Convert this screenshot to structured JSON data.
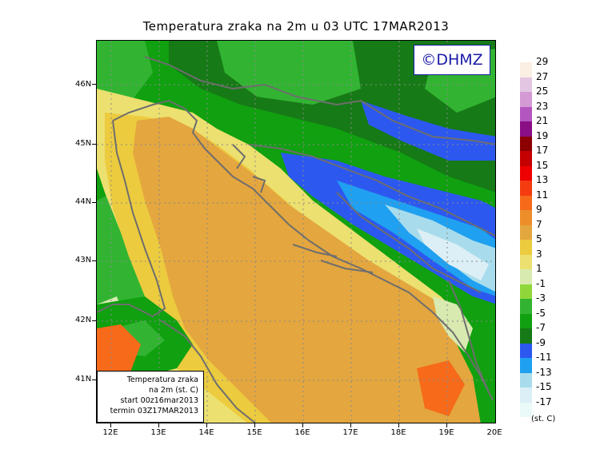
{
  "title": "Temperatura zraka na 2m u 03 UTC 17MAR2013",
  "copyright": "©DHMZ",
  "info_box": {
    "line1": "Temperatura zraka",
    "line2": "na 2m (st. C)",
    "line3": "start 00z16mar2013",
    "line4": "termin 03Z17MAR2013"
  },
  "axes": {
    "lat_labels": [
      "46N",
      "45N",
      "44N",
      "43N",
      "42N",
      "41N"
    ],
    "lon_labels": [
      "12E",
      "13E",
      "14E",
      "15E",
      "16E",
      "17E",
      "18E",
      "19E",
      "20E"
    ]
  },
  "legend": {
    "unit": "(st. C)",
    "labels": [
      "29",
      "27",
      "25",
      "23",
      "21",
      "19",
      "17",
      "15",
      "13",
      "11",
      "9",
      "7",
      "5",
      "3",
      "1",
      "-1",
      "-3",
      "-5",
      "-7",
      "-9",
      "-11",
      "-13",
      "-15",
      "-17"
    ],
    "colors": [
      "#fbeee2",
      "#e2c6e2",
      "#d49ad4",
      "#b456c0",
      "#8a0e86",
      "#8c0000",
      "#c40000",
      "#ee0000",
      "#f43c10",
      "#f66a1a",
      "#ee8e2a",
      "#e4a63e",
      "#eccb3e",
      "#ece070",
      "#d8eab0",
      "#90d83a",
      "#32b432",
      "#10a010",
      "#167a16",
      "#2c58f0",
      "#1fa0f0",
      "#a8dcec",
      "#dceff6",
      "#eafaf8"
    ]
  },
  "map_colors": {
    "sea_warm": "#e4a63e",
    "sea_mild": "#eccb3e",
    "coast_light": "#ece070",
    "pale": "#d8eab0",
    "green_light": "#90d83a",
    "green_mid": "#32b432",
    "green": "#10a010",
    "green_dark": "#167a16",
    "blue": "#2c58f0",
    "blue_light": "#1fa0f0",
    "ice": "#a8dcec",
    "snow": "#dceff6",
    "hot": "#f66a1a",
    "boundary": "#6e6e6e"
  }
}
